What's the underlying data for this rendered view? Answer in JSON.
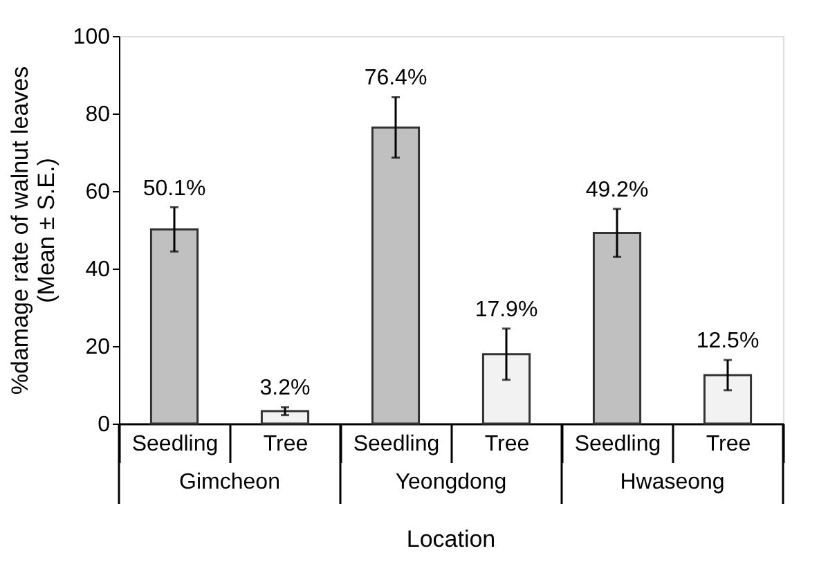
{
  "chart_data": {
    "type": "bar",
    "xlabel": "Location",
    "ylabel": "%damage rate of walnut leaves\n(Mean ± S.E.)",
    "categories": [
      "Seedling",
      "Tree",
      "Seedling",
      "Tree",
      "Seedling",
      "Tree"
    ],
    "values": [
      50.1,
      3.2,
      76.4,
      17.9,
      49.2,
      12.5
    ],
    "colors": [
      "#c0c0c0",
      "#f2f2f2",
      "#c0c0c0",
      "#f2f2f2",
      "#c0c0c0",
      "#f2f2f2"
    ],
    "errors": [
      5.7,
      1.0,
      7.8,
      6.6,
      6.2,
      3.9
    ],
    "value_labels": [
      "50.1%",
      "3.2%",
      "76.4%",
      "17.9%",
      "49.2%",
      "12.5%"
    ],
    "annotations": [
      "Gimcheon",
      "Yeongdong",
      "Hwaseong"
    ],
    "ylim": [
      0,
      100
    ],
    "yticks": [
      0,
      20,
      40,
      60,
      80,
      100
    ],
    "grid": false
  }
}
